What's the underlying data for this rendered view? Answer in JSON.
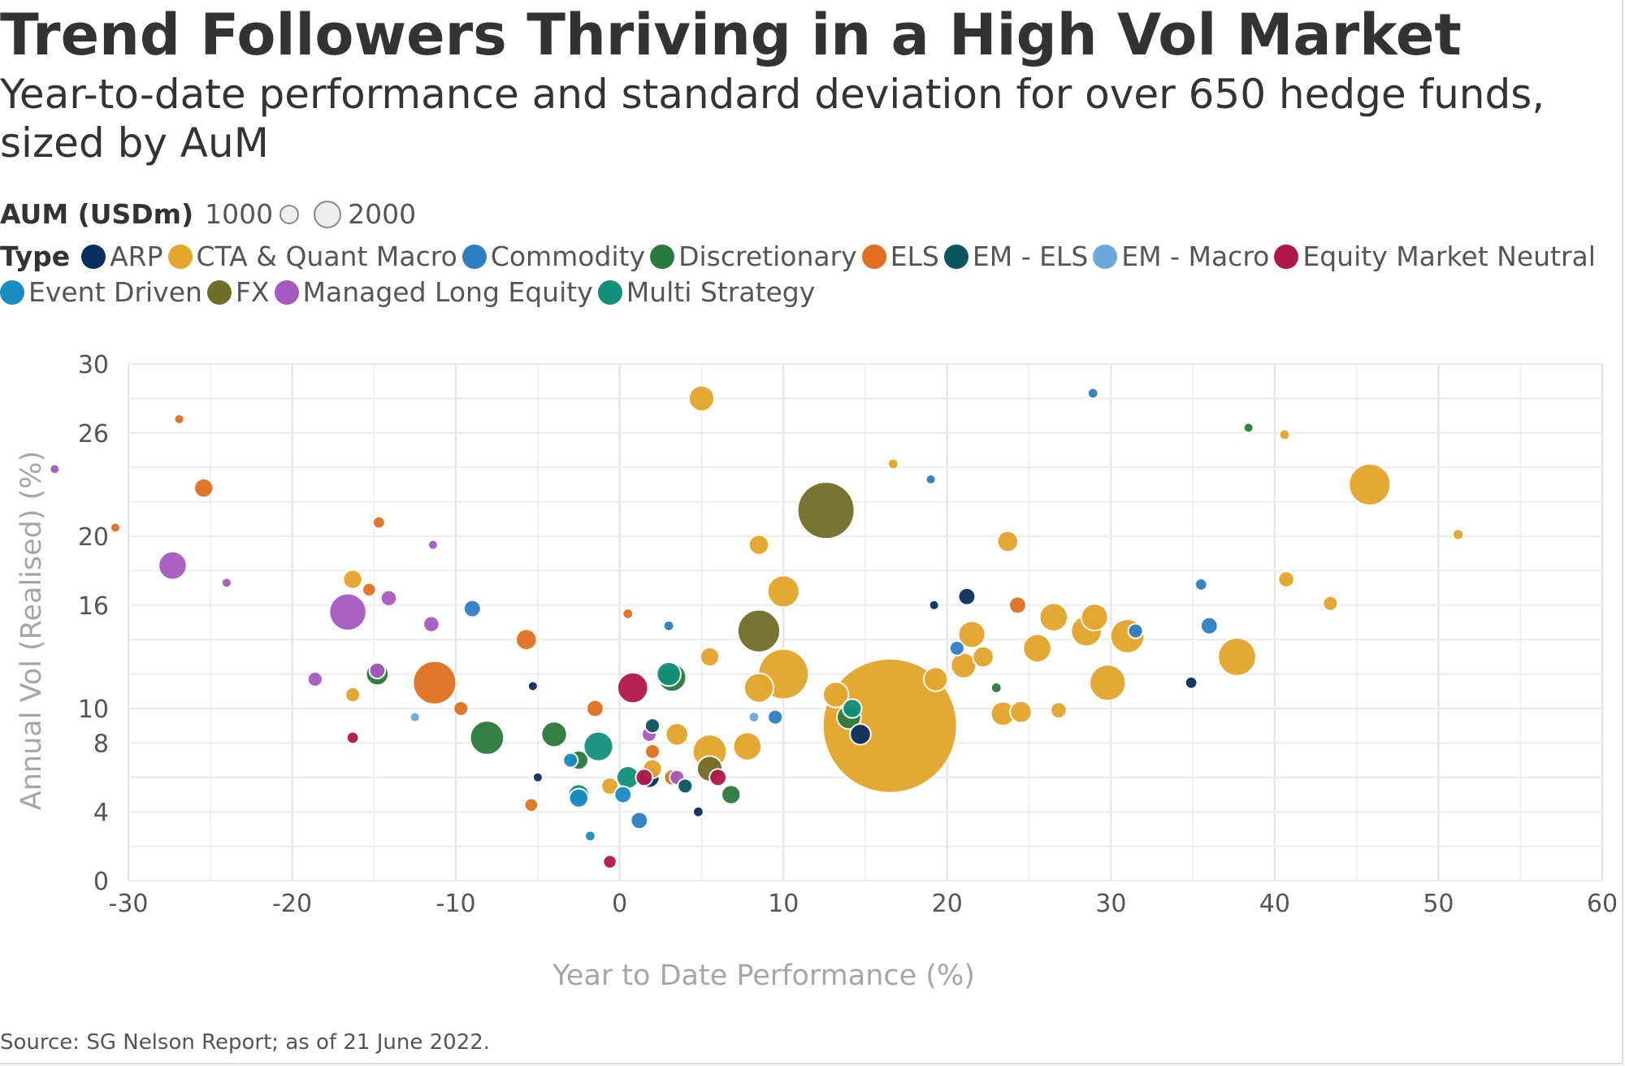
{
  "header": {
    "title": "Trend Followers Thriving in a High Vol Market",
    "subtitle": "Year-to-date performance and standard deviation for over 650 hedge funds, sized by AuM"
  },
  "legend": {
    "size_title": "AUM (USDm)",
    "size_small_label": "1000",
    "size_large_label": "2000",
    "type_title": "Type",
    "types": [
      {
        "label": "ARP",
        "color": "#0a2f5c"
      },
      {
        "label": "CTA & Quant Macro",
        "color": "#e3a52b"
      },
      {
        "label": "Commodity",
        "color": "#2e7fc1"
      },
      {
        "label": "Discretionary",
        "color": "#2a7a3b"
      },
      {
        "label": "ELS",
        "color": "#e0701f"
      },
      {
        "label": "EM - ELS",
        "color": "#0b5560"
      },
      {
        "label": "EM - Macro",
        "color": "#6aa9d8"
      },
      {
        "label": "Equity Market Neutral",
        "color": "#b0174a"
      },
      {
        "label": "Event Driven",
        "color": "#1a8bc3"
      },
      {
        "label": "FX",
        "color": "#716d2a"
      },
      {
        "label": "Managed Long Equity",
        "color": "#a45ac0"
      },
      {
        "label": "Multi Strategy",
        "color": "#12907a"
      }
    ]
  },
  "source": "Source: SG Nelson Report; as of 21 June 2022.",
  "chart_data": {
    "type": "scatter",
    "xlabel": "Year to Date Performance (%)",
    "ylabel": "Annual Vol (Realised) (%)",
    "xlim": [
      -30,
      60
    ],
    "ylim": [
      0,
      30
    ],
    "x_ticks": [
      "-30",
      "-20",
      "-10",
      "0",
      "10",
      "20",
      "30",
      "40",
      "50",
      "60"
    ],
    "y_ticks": [
      "0",
      "4",
      "8",
      "10",
      "16",
      "20",
      "26",
      "30"
    ],
    "grid": true,
    "size_meaning": "AUM (USDm)",
    "series": [
      {
        "name": "CTA & Quant Macro",
        "points": [
          {
            "x": 16.5,
            "y": 9,
            "aum": 25000
          },
          {
            "x": 12.6,
            "y": 21.5,
            "aum": 0
          },
          {
            "x": 45.8,
            "y": 23,
            "aum": 2400
          },
          {
            "x": 5,
            "y": 28,
            "aum": 900
          },
          {
            "x": 37.7,
            "y": 13,
            "aum": 2000
          },
          {
            "x": 10,
            "y": 16.8,
            "aum": 1400
          },
          {
            "x": 10,
            "y": 12,
            "aum": 3500
          },
          {
            "x": 8.5,
            "y": 19.5,
            "aum": 550
          },
          {
            "x": 23.7,
            "y": 19.7,
            "aum": 600
          },
          {
            "x": 21.5,
            "y": 14.3,
            "aum": 1000
          },
          {
            "x": 26.5,
            "y": 15.3,
            "aum": 1100
          },
          {
            "x": 29,
            "y": 15.3,
            "aum": 1000
          },
          {
            "x": 28.5,
            "y": 14.5,
            "aum": 1300
          },
          {
            "x": 31,
            "y": 14.2,
            "aum": 1600
          },
          {
            "x": 29.8,
            "y": 11.5,
            "aum": 1800
          },
          {
            "x": 25.5,
            "y": 13.5,
            "aum": 1100
          },
          {
            "x": 24.5,
            "y": 9.8,
            "aum": 650
          },
          {
            "x": 26.8,
            "y": 9.9,
            "aum": 350
          },
          {
            "x": 23.4,
            "y": 9.7,
            "aum": 800
          },
          {
            "x": 22.2,
            "y": 13,
            "aum": 600
          },
          {
            "x": 21,
            "y": 12.5,
            "aum": 900
          },
          {
            "x": 19.3,
            "y": 11.7,
            "aum": 800
          },
          {
            "x": 13.2,
            "y": 10.8,
            "aum": 900
          },
          {
            "x": 8.5,
            "y": 11.2,
            "aum": 1200
          },
          {
            "x": 7.8,
            "y": 7.8,
            "aum": 1100
          },
          {
            "x": 5.5,
            "y": 7.5,
            "aum": 1600
          },
          {
            "x": 5.5,
            "y": 13,
            "aum": 500
          },
          {
            "x": 40.7,
            "y": 17.5,
            "aum": 350
          },
          {
            "x": 43.4,
            "y": 16.1,
            "aum": 300
          },
          {
            "x": 51.2,
            "y": 20.1,
            "aum": 160
          },
          {
            "x": 40.6,
            "y": 25.9,
            "aum": 150
          },
          {
            "x": -16.3,
            "y": 17.5,
            "aum": 500
          },
          {
            "x": -16.3,
            "y": 10.8,
            "aum": 300
          },
          {
            "x": -0.6,
            "y": 5.5,
            "aum": 400
          },
          {
            "x": 3.5,
            "y": 8.5,
            "aum": 700
          },
          {
            "x": 2,
            "y": 6.5,
            "aum": 500
          },
          {
            "x": 16.7,
            "y": 24.2,
            "aum": 150
          }
        ]
      },
      {
        "name": "FX",
        "points": [
          {
            "x": 12.6,
            "y": 21.5,
            "aum": 4500
          },
          {
            "x": 8.5,
            "y": 14.5,
            "aum": 2500
          },
          {
            "x": 5.5,
            "y": 6.5,
            "aum": 900
          }
        ]
      },
      {
        "name": "ELS",
        "points": [
          {
            "x": -25.4,
            "y": 22.8,
            "aum": 500
          },
          {
            "x": -11.3,
            "y": 11.5,
            "aum": 2600
          },
          {
            "x": -5.7,
            "y": 14,
            "aum": 600
          },
          {
            "x": -14.7,
            "y": 20.8,
            "aum": 200
          },
          {
            "x": -15.3,
            "y": 16.9,
            "aum": 250
          },
          {
            "x": 24.3,
            "y": 16,
            "aum": 400
          },
          {
            "x": -5.4,
            "y": 4.4,
            "aum": 250
          },
          {
            "x": -9.7,
            "y": 10,
            "aum": 300
          },
          {
            "x": -26.9,
            "y": 26.8,
            "aum": 100
          },
          {
            "x": -30.8,
            "y": 20.5,
            "aum": 100
          },
          {
            "x": -1.5,
            "y": 10,
            "aum": 400
          },
          {
            "x": 2,
            "y": 7.5,
            "aum": 300
          },
          {
            "x": 3.2,
            "y": 6,
            "aum": 350
          },
          {
            "x": 0.5,
            "y": 15.5,
            "aum": 150
          }
        ]
      },
      {
        "name": "Managed Long Equity",
        "points": [
          {
            "x": -27.3,
            "y": 18.3,
            "aum": 1100
          },
          {
            "x": -16.6,
            "y": 15.6,
            "aum": 1900
          },
          {
            "x": -14.1,
            "y": 16.4,
            "aum": 350
          },
          {
            "x": -11.5,
            "y": 14.9,
            "aum": 350
          },
          {
            "x": -18.6,
            "y": 11.7,
            "aum": 300
          },
          {
            "x": -14.8,
            "y": 12.2,
            "aum": 350
          },
          {
            "x": -24,
            "y": 17.3,
            "aum": 120
          },
          {
            "x": -11.4,
            "y": 19.5,
            "aum": 120
          },
          {
            "x": -34.5,
            "y": 23.9,
            "aum": 100
          },
          {
            "x": 1.8,
            "y": 8.5,
            "aum": 300
          },
          {
            "x": 3.5,
            "y": 6,
            "aum": 300
          }
        ]
      },
      {
        "name": "Discretionary",
        "points": [
          {
            "x": -8.1,
            "y": 8.3,
            "aum": 1600
          },
          {
            "x": -14.8,
            "y": 12,
            "aum": 700
          },
          {
            "x": -4,
            "y": 8.5,
            "aum": 900
          },
          {
            "x": 3.2,
            "y": 11.8,
            "aum": 1100
          },
          {
            "x": 14,
            "y": 9.5,
            "aum": 800
          },
          {
            "x": 6.8,
            "y": 5,
            "aum": 500
          },
          {
            "x": 38.4,
            "y": 26.3,
            "aum": 100
          },
          {
            "x": -2.5,
            "y": 7,
            "aum": 500
          },
          {
            "x": 23,
            "y": 11.2,
            "aum": 150
          }
        ]
      },
      {
        "name": "Equity Market Neutral",
        "points": [
          {
            "x": 0.8,
            "y": 11.2,
            "aum": 1300
          },
          {
            "x": -16.3,
            "y": 8.3,
            "aum": 200
          },
          {
            "x": -0.6,
            "y": 1.1,
            "aum": 250
          },
          {
            "x": 1.5,
            "y": 6,
            "aum": 400
          },
          {
            "x": 6,
            "y": 6,
            "aum": 400
          }
        ]
      },
      {
        "name": "Multi Strategy",
        "points": [
          {
            "x": 3,
            "y": 12,
            "aum": 800
          },
          {
            "x": -1.3,
            "y": 7.8,
            "aum": 1200
          },
          {
            "x": -2.5,
            "y": 5,
            "aum": 600
          },
          {
            "x": 14.2,
            "y": 10,
            "aum": 500
          },
          {
            "x": 0.5,
            "y": 6,
            "aum": 700
          }
        ]
      },
      {
        "name": "ARP",
        "points": [
          {
            "x": 14.7,
            "y": 8.5,
            "aum": 600
          },
          {
            "x": 21.2,
            "y": 16.5,
            "aum": 400
          },
          {
            "x": 34.9,
            "y": 11.5,
            "aum": 200
          },
          {
            "x": 1.8,
            "y": 6,
            "aum": 600
          },
          {
            "x": 4.8,
            "y": 4,
            "aum": 150
          },
          {
            "x": -5.3,
            "y": 11.3,
            "aum": 120
          },
          {
            "x": 19.2,
            "y": 16,
            "aum": 100
          },
          {
            "x": -5,
            "y": 6,
            "aum": 100
          }
        ]
      },
      {
        "name": "Commodity",
        "points": [
          {
            "x": 28.9,
            "y": 28.3,
            "aum": 150
          },
          {
            "x": 36,
            "y": 14.8,
            "aum": 400
          },
          {
            "x": 35.5,
            "y": 17.2,
            "aum": 200
          },
          {
            "x": 31.5,
            "y": 14.5,
            "aum": 300
          },
          {
            "x": 20.6,
            "y": 13.5,
            "aum": 300
          },
          {
            "x": 19,
            "y": 23.3,
            "aum": 100
          },
          {
            "x": 3,
            "y": 14.8,
            "aum": 150
          },
          {
            "x": 1.2,
            "y": 3.5,
            "aum": 400
          },
          {
            "x": -9,
            "y": 15.8,
            "aum": 400
          },
          {
            "x": 9.5,
            "y": 9.5,
            "aum": 300
          }
        ]
      },
      {
        "name": "Event Driven",
        "points": [
          {
            "x": -2.5,
            "y": 4.8,
            "aum": 500
          },
          {
            "x": -1.8,
            "y": 2.6,
            "aum": 150
          },
          {
            "x": -3,
            "y": 7,
            "aum": 300
          },
          {
            "x": 0.2,
            "y": 5,
            "aum": 400
          }
        ]
      },
      {
        "name": "EM - ELS",
        "points": [
          {
            "x": 2,
            "y": 9,
            "aum": 300
          },
          {
            "x": 4,
            "y": 5.5,
            "aum": 300
          }
        ]
      },
      {
        "name": "EM - Macro",
        "points": [
          {
            "x": -12.5,
            "y": 9.5,
            "aum": 100
          },
          {
            "x": 8.2,
            "y": 9.5,
            "aum": 150
          }
        ]
      }
    ]
  }
}
